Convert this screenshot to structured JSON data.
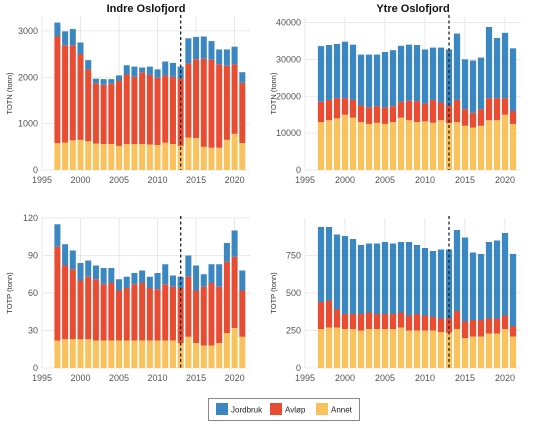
{
  "chart_data": [
    {
      "type": "bar",
      "stacked": true,
      "title": "Indre Oslofjord",
      "ylabel": "TOTN (tonn)",
      "xlim": [
        1995,
        2022
      ],
      "ylim": [
        0,
        3300
      ],
      "yticks": [
        0,
        1000,
        2000,
        3000
      ],
      "xticks": [
        1995,
        2000,
        2005,
        2010,
        2015,
        2020
      ],
      "vline": 2013,
      "x": [
        1997,
        1998,
        1999,
        2000,
        2001,
        2002,
        2003,
        2004,
        2005,
        2006,
        2007,
        2008,
        2009,
        2010,
        2011,
        2012,
        2013,
        2014,
        2015,
        2016,
        2017,
        2018,
        2019,
        2020,
        2021
      ],
      "series": [
        {
          "name": "Annet",
          "values": [
            580,
            590,
            640,
            650,
            620,
            570,
            560,
            560,
            520,
            560,
            560,
            560,
            550,
            540,
            590,
            560,
            520,
            700,
            690,
            500,
            480,
            480,
            650,
            780,
            580
          ]
        },
        {
          "name": "Avløp",
          "values": [
            2300,
            2100,
            2050,
            1850,
            1550,
            1300,
            1280,
            1300,
            1400,
            1500,
            1450,
            1550,
            1500,
            1450,
            1450,
            1450,
            1450,
            1600,
            1700,
            1900,
            1900,
            1800,
            1600,
            1500,
            1300
          ]
        },
        {
          "name": "Jordbruk",
          "values": [
            300,
            300,
            350,
            250,
            200,
            100,
            120,
            100,
            120,
            200,
            220,
            100,
            180,
            180,
            300,
            300,
            260,
            540,
            480,
            480,
            400,
            320,
            350,
            380,
            230
          ]
        }
      ]
    },
    {
      "type": "bar",
      "stacked": true,
      "title": "Ytre Oslofjord",
      "ylabel": "TOTN (tonn)",
      "xlim": [
        1995,
        2022
      ],
      "ylim": [
        0,
        41500
      ],
      "yticks": [
        0,
        10000,
        20000,
        30000,
        40000
      ],
      "xticks": [
        1995,
        2000,
        2005,
        2010,
        2015,
        2020
      ],
      "vline": 2013,
      "x": [
        1997,
        1998,
        1999,
        2000,
        2001,
        2002,
        2003,
        2004,
        2005,
        2006,
        2007,
        2008,
        2009,
        2010,
        2011,
        2012,
        2013,
        2014,
        2015,
        2016,
        2017,
        2018,
        2019,
        2020,
        2021
      ],
      "series": [
        {
          "name": "Annet",
          "values": [
            13000,
            13500,
            14000,
            15000,
            14200,
            13000,
            12500,
            12800,
            12500,
            13000,
            14200,
            13500,
            13000,
            13200,
            12800,
            13500,
            12700,
            13000,
            12000,
            11500,
            12000,
            13500,
            13500,
            15000,
            12500
          ]
        },
        {
          "name": "Avløp",
          "values": [
            5500,
            5500,
            5500,
            4500,
            4800,
            4500,
            4500,
            4500,
            4500,
            4300,
            4300,
            5300,
            5700,
            4800,
            6200,
            4800,
            4800,
            6000,
            4500,
            4000,
            4500,
            6000,
            6000,
            4500,
            3500
          ]
        },
        {
          "name": "Jordbruk",
          "values": [
            15100,
            14900,
            14700,
            15300,
            15000,
            13800,
            14300,
            14000,
            15000,
            15200,
            15200,
            15200,
            15200,
            14700,
            14200,
            14900,
            15200,
            18000,
            13500,
            14200,
            14000,
            19300,
            16300,
            17700,
            17000
          ]
        }
      ]
    },
    {
      "type": "bar",
      "stacked": true,
      "title": "",
      "ylabel": "TOTP (tonn)",
      "xlim": [
        1995,
        2022
      ],
      "ylim": [
        0,
        120
      ],
      "yticks": [
        0,
        30,
        60,
        90,
        120
      ],
      "xticks": [
        1995,
        2000,
        2005,
        2010,
        2015,
        2020
      ],
      "vline": 2013,
      "x": [
        1997,
        1998,
        1999,
        2000,
        2001,
        2002,
        2003,
        2004,
        2005,
        2006,
        2007,
        2008,
        2009,
        2010,
        2011,
        2012,
        2013,
        2014,
        2015,
        2016,
        2017,
        2018,
        2019,
        2020,
        2021
      ],
      "series": [
        {
          "name": "Annet",
          "values": [
            22,
            23,
            23,
            23,
            23,
            22,
            22,
            22,
            22,
            22,
            22,
            22,
            22,
            22,
            22,
            22,
            20,
            25,
            20,
            18,
            18,
            20,
            28,
            32,
            25
          ]
        },
        {
          "name": "Avløp",
          "values": [
            75,
            59,
            56,
            47,
            50,
            49,
            45,
            46,
            40,
            42,
            45,
            46,
            42,
            41,
            45,
            43,
            44,
            48,
            42,
            47,
            50,
            45,
            57,
            57,
            37
          ]
        },
        {
          "name": "Jordbruk",
          "values": [
            18,
            17,
            15,
            14,
            13,
            11,
            13,
            12,
            9,
            9,
            9,
            10,
            9,
            13,
            16,
            9,
            9,
            17,
            20,
            10,
            15,
            18,
            15,
            21,
            16
          ]
        }
      ]
    },
    {
      "type": "bar",
      "stacked": true,
      "title": "",
      "ylabel": "TOTP (tonn)",
      "xlim": [
        1995,
        2022
      ],
      "ylim": [
        0,
        1000
      ],
      "yticks": [
        0,
        250,
        500,
        750
      ],
      "xticks": [
        1995,
        2000,
        2005,
        2010,
        2015,
        2020
      ],
      "vline": 2013,
      "x": [
        1997,
        1998,
        1999,
        2000,
        2001,
        2002,
        2003,
        2004,
        2005,
        2006,
        2007,
        2008,
        2009,
        2010,
        2011,
        2012,
        2013,
        2014,
        2015,
        2016,
        2017,
        2018,
        2019,
        2020,
        2021
      ],
      "series": [
        {
          "name": "Annet",
          "values": [
            260,
            270,
            270,
            260,
            260,
            250,
            260,
            260,
            260,
            260,
            270,
            250,
            250,
            250,
            250,
            240,
            235,
            260,
            200,
            210,
            210,
            230,
            230,
            260,
            210
          ]
        },
        {
          "name": "Avløp",
          "values": [
            180,
            180,
            120,
            100,
            100,
            110,
            110,
            100,
            100,
            100,
            100,
            100,
            110,
            100,
            90,
            90,
            95,
            120,
            110,
            110,
            110,
            100,
            100,
            90,
            70
          ]
        },
        {
          "name": "Jordbruk",
          "values": [
            500,
            490,
            500,
            520,
            500,
            460,
            460,
            470,
            480,
            470,
            470,
            490,
            460,
            450,
            440,
            460,
            460,
            540,
            560,
            450,
            440,
            510,
            520,
            550,
            480
          ]
        }
      ]
    }
  ],
  "legend": {
    "items": [
      {
        "label": "Jordbruk",
        "color": "#3A87C2"
      },
      {
        "label": "Avløp",
        "color": "#E84C33"
      },
      {
        "label": "Annet",
        "color": "#FAC25C"
      }
    ]
  },
  "colors": {
    "Annet": "#FAC25C",
    "Avløp": "#E84C33",
    "Jordbruk": "#3A87C2"
  }
}
